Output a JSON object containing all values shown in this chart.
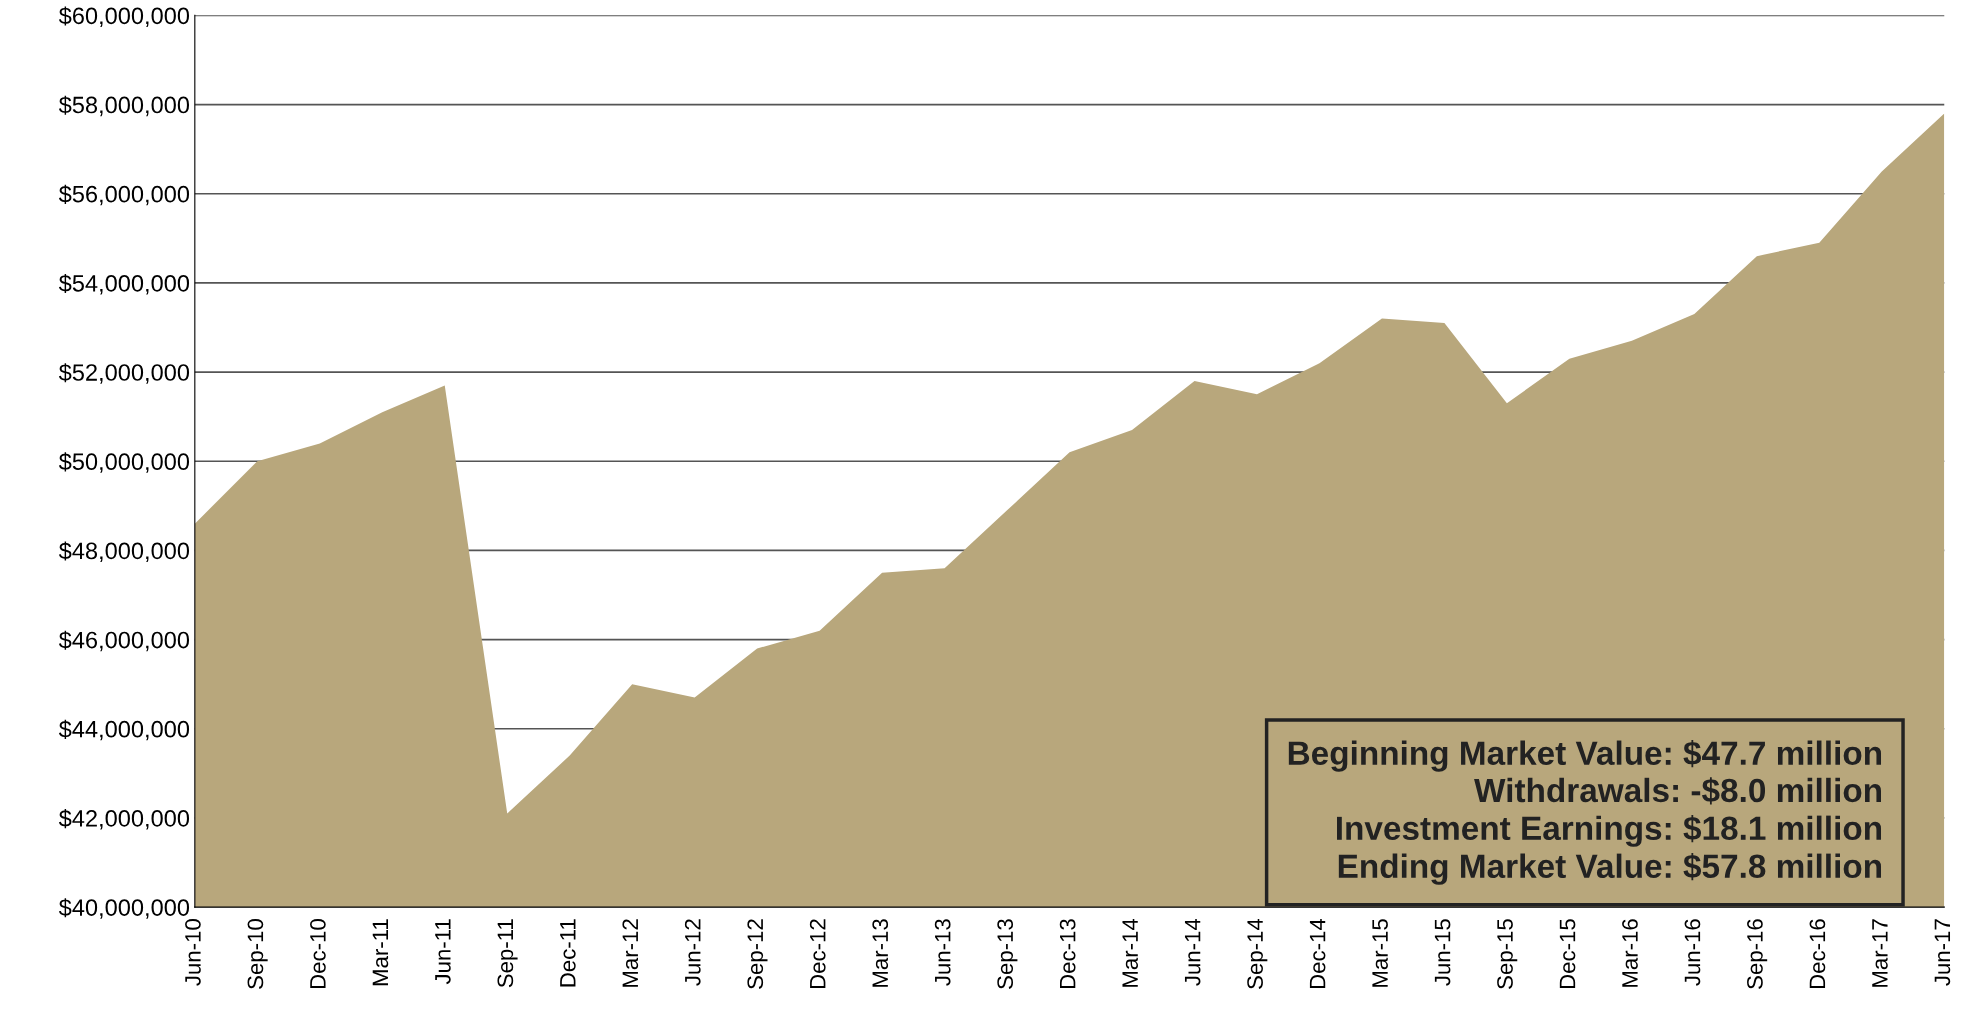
{
  "chart_data": {
    "type": "area",
    "categories": [
      "Jun-10",
      "Sep-10",
      "Dec-10",
      "Mar-11",
      "Jun-11",
      "Sep-11",
      "Dec-11",
      "Mar-12",
      "Jun-12",
      "Sep-12",
      "Dec-12",
      "Mar-13",
      "Jun-13",
      "Sep-13",
      "Dec-13",
      "Mar-14",
      "Jun-14",
      "Sep-14",
      "Dec-14",
      "Mar-15",
      "Jun-15",
      "Sep-15",
      "Dec-15",
      "Mar-16",
      "Jun-16",
      "Sep-16",
      "Dec-16",
      "Mar-17",
      "Jun-17"
    ],
    "series": [
      {
        "color": "#b8a77c",
        "values": [
          48600000,
          50000000,
          50400000,
          51100000,
          51700000,
          42100000,
          43400000,
          45000000,
          44700000,
          45800000,
          46200000,
          47500000,
          47600000,
          48900000,
          50200000,
          50700000,
          51800000,
          51500000,
          52200000,
          53200000,
          53100000,
          51300000,
          52300000,
          52700000,
          53300000,
          54600000,
          54900000,
          56500000,
          57800000
        ]
      }
    ],
    "ylim": [
      40000000,
      60000000
    ],
    "yticks": [
      {
        "value": 40000000,
        "label": "$40,000,000"
      },
      {
        "value": 42000000,
        "label": "$42,000,000"
      },
      {
        "value": 44000000,
        "label": "$44,000,000"
      },
      {
        "value": 46000000,
        "label": "$46,000,000"
      },
      {
        "value": 48000000,
        "label": "$48,000,000"
      },
      {
        "value": 50000000,
        "label": "$50,000,000"
      },
      {
        "value": 52000000,
        "label": "$52,000,000"
      },
      {
        "value": 54000000,
        "label": "$54,000,000"
      },
      {
        "value": 56000000,
        "label": "$56,000,000"
      },
      {
        "value": 58000000,
        "label": "$58,000,000"
      },
      {
        "value": 60000000,
        "label": "$60,000,000"
      }
    ],
    "grid": "y",
    "annotations": [
      "Beginning Market Value: $47.7 million",
      "Withdrawals: -$8.0 million",
      "Investment Earnings: $18.1 million",
      "Ending Market Value: $57.8 million"
    ]
  }
}
